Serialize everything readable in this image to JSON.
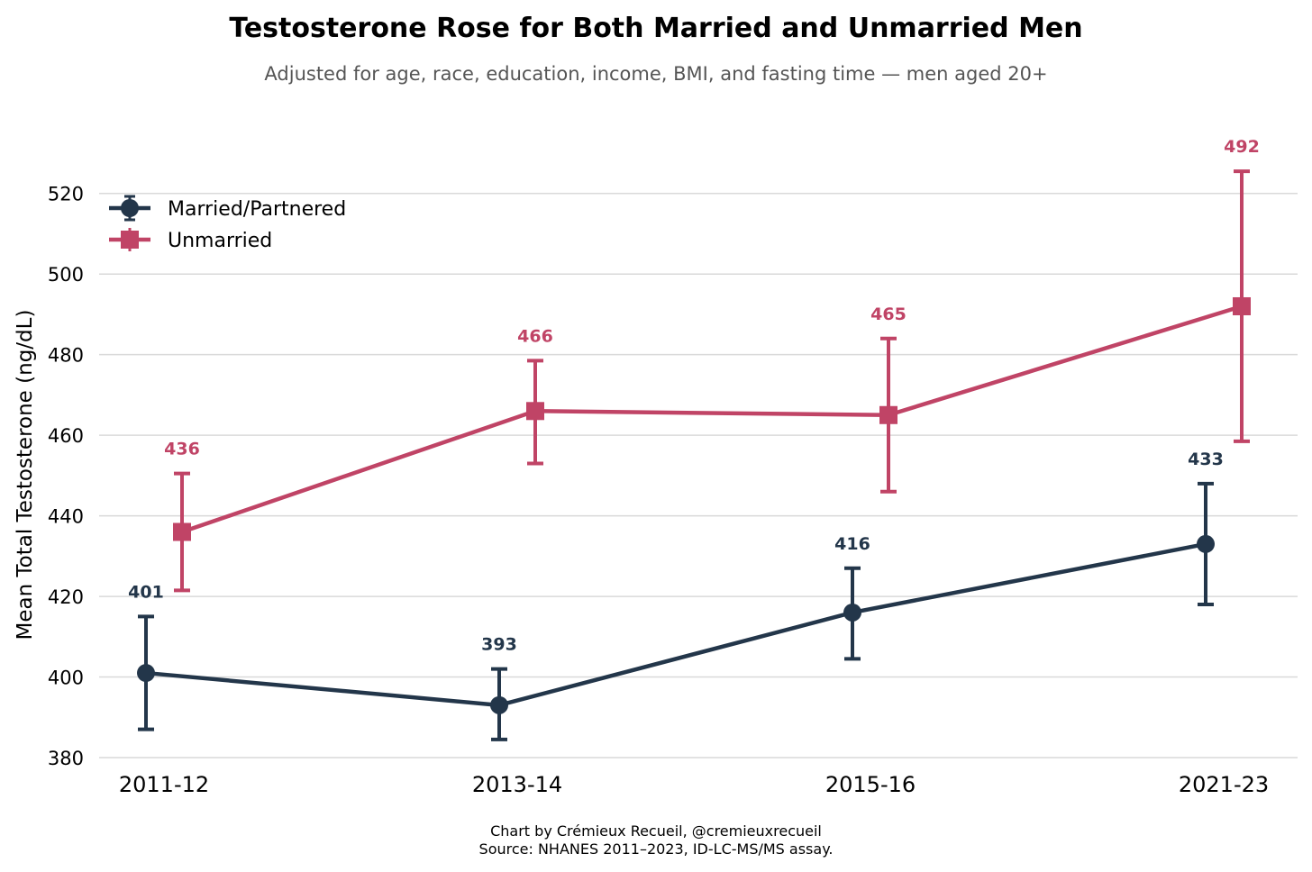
{
  "chart_data": {
    "type": "line",
    "title": "Testosterone Rose for Both Married and Unmarried Men",
    "subtitle": "Adjusted for age, race, education, income, BMI, and fasting time — men aged 20+",
    "xlabel": "",
    "ylabel": "Mean Total Testosterone (ng/dL)",
    "categories": [
      "2011-12",
      "2013-14",
      "2015-16",
      "2021-23"
    ],
    "ylim": [
      380,
      530
    ],
    "yticks": [
      "380",
      "400",
      "420",
      "440",
      "460",
      "480",
      "500",
      "520"
    ],
    "grid": "horizontal",
    "legend_position": "top-left",
    "error_bars": true,
    "series": [
      {
        "name": "Married/Partnered",
        "marker": "circle",
        "color": "#23364a",
        "values": [
          401,
          393,
          416,
          433
        ],
        "lower": [
          387,
          384.5,
          404.5,
          418
        ],
        "upper": [
          415,
          402,
          427,
          448
        ],
        "labels": [
          "401",
          "393",
          "416",
          "433"
        ]
      },
      {
        "name": "Unmarried",
        "marker": "square",
        "color": "#c04466",
        "values": [
          436,
          466,
          465,
          492
        ],
        "lower": [
          421.5,
          453,
          446,
          458.5
        ],
        "upper": [
          450.5,
          478.5,
          484,
          525.5
        ],
        "labels": [
          "436",
          "466",
          "465",
          "492"
        ]
      }
    ]
  },
  "footer": {
    "credit": "Chart by Crémieux Recueil, @cremieuxrecueil",
    "source": "Source: NHANES 2011–2023, ID-LC-MS/MS assay."
  }
}
